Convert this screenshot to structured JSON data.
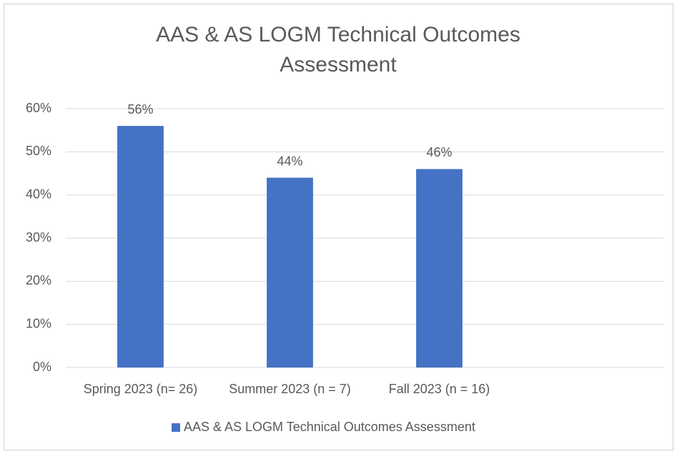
{
  "chart_data": {
    "type": "bar",
    "title": "AAS & AS LOGM Technical Outcomes Assessment",
    "categories": [
      "Spring 2023 (n= 26)",
      "Summer 2023 (n = 7)",
      "Fall 2023 (n = 16)",
      null
    ],
    "series": [
      {
        "name": "AAS & AS LOGM Technical Outcomes Assessment",
        "color": "#4472c4",
        "values": [
          56,
          44,
          46,
          null
        ],
        "value_labels": [
          "56%",
          "44%",
          "46%",
          null
        ]
      }
    ],
    "ylim": [
      0,
      60
    ],
    "yticks": [
      {
        "value": 0,
        "label": "0%"
      },
      {
        "value": 10,
        "label": "10%"
      },
      {
        "value": 20,
        "label": "20%"
      },
      {
        "value": 30,
        "label": "30%"
      },
      {
        "value": 40,
        "label": "40%"
      },
      {
        "value": 50,
        "label": "50%"
      },
      {
        "value": 60,
        "label": "60%"
      }
    ],
    "grid": true,
    "legend": "bottom"
  }
}
